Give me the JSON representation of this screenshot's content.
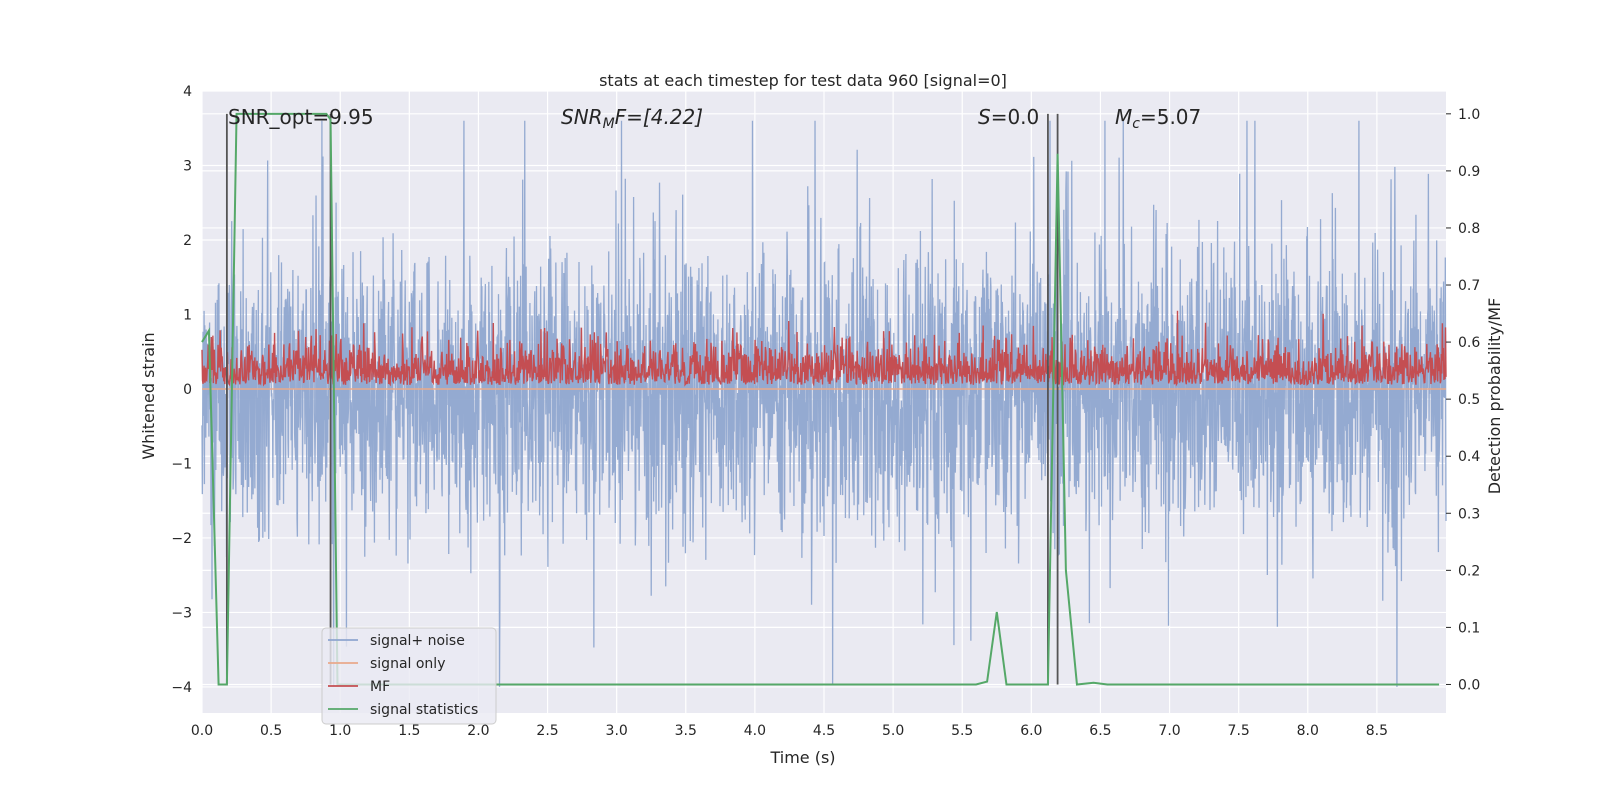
{
  "chart_data": {
    "type": "line",
    "title": "stats at each timestep for test data 960 [signal=0]",
    "xlabel": "Time (s)",
    "ylabel": "Whitened strain",
    "y2label": "Detection probability/MF",
    "xlim": [
      0.0,
      9.0
    ],
    "ylim": [
      -4.35,
      4.0
    ],
    "y2lim": [
      -0.05,
      1.04
    ],
    "xticks": [
      "0.0",
      "0.5",
      "1.0",
      "1.5",
      "2.0",
      "2.5",
      "3.0",
      "3.5",
      "4.0",
      "4.5",
      "5.0",
      "5.5",
      "6.0",
      "6.5",
      "7.0",
      "7.5",
      "8.0",
      "8.5"
    ],
    "yticks": [
      "−4",
      "−3",
      "−2",
      "−1",
      "0",
      "1",
      "2",
      "3",
      "4"
    ],
    "y2ticks": [
      "0.0",
      "0.1",
      "0.2",
      "0.3",
      "0.4",
      "0.5",
      "0.6",
      "0.7",
      "0.8",
      "0.9",
      "1.0"
    ],
    "annotations": {
      "snr_opt": "SNR_opt=9.95",
      "snr_mf_base": "SNR",
      "snr_mf_sub": "M",
      "snr_mf_rest": "F=[4.22]",
      "s_base": "S",
      "s_rest": "=0.0",
      "mc_base": "M",
      "mc_sub": "c",
      "mc_rest": "=5.07"
    },
    "vlines": [
      0.18,
      0.93,
      6.12,
      6.19
    ],
    "legend_position": "lower-left",
    "series": [
      {
        "name": "signal+ noise",
        "color": "#8fa6cf",
        "envelope_upper": 2.1,
        "envelope_lower": -2.2,
        "spikes_max": [
          3.6,
          3.2,
          3.3
        ],
        "spikes_min": [
          -4.0,
          -3.6,
          -3.3
        ]
      },
      {
        "name": "signal only",
        "color": "#e9a98b",
        "values_approx": 0.0
      },
      {
        "name": "MF",
        "color": "#c44e52",
        "range_approx": [
          0.5,
          0.65
        ]
      },
      {
        "name": "signal statistics",
        "color": "#55a868",
        "axis": "right",
        "x": [
          0.0,
          0.05,
          0.12,
          0.18,
          0.25,
          0.35,
          0.5,
          0.7,
          0.9,
          0.93,
          0.98,
          1.2,
          2.0,
          3.0,
          4.0,
          5.0,
          5.6,
          5.68,
          5.75,
          5.82,
          6.0,
          6.12,
          6.19,
          6.25,
          6.33,
          6.45,
          6.55,
          7.0,
          8.0,
          8.95
        ],
        "y": [
          0.6,
          0.62,
          0.0,
          0.0,
          1.0,
          1.0,
          1.0,
          1.0,
          1.0,
          0.99,
          0.0,
          0.0,
          0.0,
          0.0,
          0.0,
          0.0,
          0.0,
          0.005,
          0.127,
          0.0,
          0.0,
          0.0,
          0.93,
          0.2,
          0.0,
          0.003,
          0.0,
          0.0,
          0.0,
          0.0
        ]
      }
    ]
  }
}
